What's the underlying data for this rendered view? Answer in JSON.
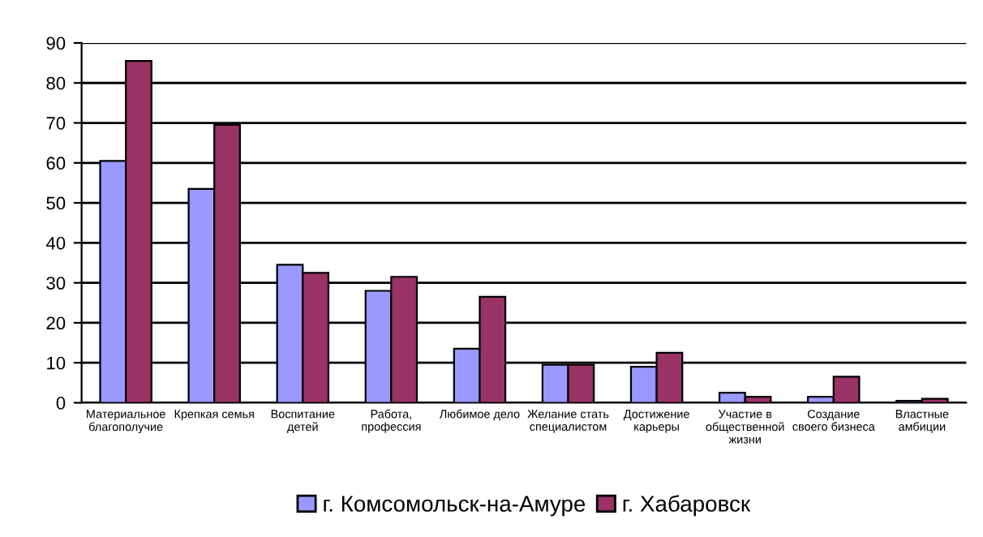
{
  "chart_data": {
    "type": "bar",
    "categories": [
      "Материальное\nблагополучие",
      "Крепкая семья",
      "Воспитание\nдетей",
      "Работа,\nпрофессия",
      "Любимое дело",
      "Желание стать\nспециалистом",
      "Достижение\nкарьеры",
      "Участие в\nобщественной\nжизни",
      "Создание\nсвоего бизнеса",
      "Властные\nамбиции"
    ],
    "series": [
      {
        "name": "г. Комсомольск-на-Амуре",
        "color": "#9999ff",
        "values": [
          60.5,
          53.5,
          34.5,
          28,
          13.5,
          9.5,
          9,
          2.5,
          1.5,
          0.5
        ]
      },
      {
        "name": "г. Хабаровск",
        "color": "#993366",
        "values": [
          85.5,
          69.5,
          32.5,
          31.5,
          26.5,
          9.5,
          12.5,
          1.5,
          6.5,
          1
        ]
      }
    ],
    "ylim": [
      0,
      90
    ],
    "yticks": [
      0,
      10,
      20,
      30,
      40,
      50,
      60,
      70,
      80,
      90
    ],
    "grid": "y",
    "legend": "bottom"
  }
}
